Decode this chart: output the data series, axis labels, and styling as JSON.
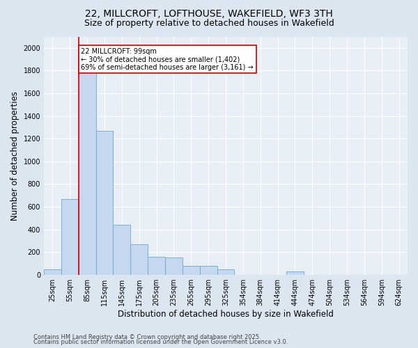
{
  "title1": "22, MILLCROFT, LOFTHOUSE, WAKEFIELD, WF3 3TH",
  "title2": "Size of property relative to detached houses in Wakefield",
  "xlabel": "Distribution of detached houses by size in Wakefield",
  "ylabel": "Number of detached properties",
  "categories": [
    "25sqm",
    "55sqm",
    "85sqm",
    "115sqm",
    "145sqm",
    "175sqm",
    "205sqm",
    "235sqm",
    "265sqm",
    "295sqm",
    "325sqm",
    "354sqm",
    "384sqm",
    "414sqm",
    "444sqm",
    "474sqm",
    "504sqm",
    "534sqm",
    "564sqm",
    "594sqm",
    "624sqm"
  ],
  "values": [
    50,
    670,
    1900,
    1270,
    440,
    270,
    160,
    150,
    80,
    80,
    50,
    0,
    0,
    0,
    30,
    0,
    0,
    0,
    0,
    0,
    0
  ],
  "bar_color": "#c5d8f0",
  "bar_edge_color": "#6aaad4",
  "red_line_index": 2,
  "annotation_text": "22 MILLCROFT: 99sqm\n← 30% of detached houses are smaller (1,402)\n69% of semi-detached houses are larger (3,161) →",
  "annotation_box_color": "#ffffff",
  "annotation_box_edge": "#cc0000",
  "ylim": [
    0,
    2100
  ],
  "yticks": [
    0,
    200,
    400,
    600,
    800,
    1000,
    1200,
    1400,
    1600,
    1800,
    2000
  ],
  "bg_color": "#dce6f0",
  "plot_bg_color": "#e8eef6",
  "footer1": "Contains HM Land Registry data © Crown copyright and database right 2025.",
  "footer2": "Contains public sector information licensed under the Open Government Licence v3.0.",
  "title_fontsize": 10,
  "subtitle_fontsize": 9,
  "tick_fontsize": 7,
  "label_fontsize": 8.5,
  "footer_fontsize": 6,
  "ann_fontsize": 7
}
